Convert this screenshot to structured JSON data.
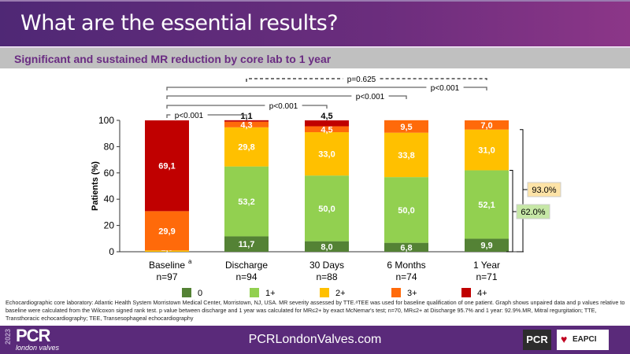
{
  "header": {
    "title": "What are the essential results?"
  },
  "subtitle": "Significant and sustained MR reduction by core lab to 1 year",
  "chart_data": {
    "type": "bar",
    "stacked": true,
    "ylabel": "Patients (%)",
    "ylim": [
      0,
      100
    ],
    "yticks": [
      "0",
      "20",
      "40",
      "60",
      "80",
      "100"
    ],
    "categories": [
      "Baseline",
      "Discharge",
      "30 Days",
      "6 Months",
      "1 Year"
    ],
    "category_superscripts": [
      "a",
      "",
      "",
      "",
      ""
    ],
    "category_n": [
      "n=97",
      "n=94",
      "n=88",
      "n=74",
      "n=71"
    ],
    "series": [
      {
        "name": "0",
        "color": "#548235",
        "values": [
          0,
          11.7,
          8.0,
          6.8,
          9.9
        ],
        "labels": [
          "",
          "11,7",
          "8,0",
          "6,8",
          "9,9"
        ]
      },
      {
        "name": "1+",
        "color": "#92d050",
        "values": [
          0,
          53.2,
          50.0,
          50.0,
          52.1
        ],
        "labels": [
          "",
          "53,2",
          "50,0",
          "50,0",
          "52,1"
        ]
      },
      {
        "name": "2+",
        "color": "#ffc000",
        "values": [
          1.0,
          29.8,
          33.0,
          33.8,
          31.0
        ],
        "labels": [
          "1,0",
          "29,8",
          "33,0",
          "33,8",
          "31,0"
        ]
      },
      {
        "name": "3+",
        "color": "#ff6a0a",
        "values": [
          29.9,
          4.3,
          4.5,
          9.5,
          7.0
        ],
        "labels": [
          "29,9",
          "4,3",
          "4,5",
          "9,5",
          "7,0"
        ]
      },
      {
        "name": "4+",
        "color": "#c00000",
        "values": [
          69.1,
          1.1,
          4.5,
          0,
          0
        ],
        "labels": [
          "69,1",
          "1,1",
          "4,5",
          "",
          ""
        ]
      }
    ],
    "comparisons": [
      {
        "from": "Discharge",
        "to": "1 Year",
        "label": "p=0.625",
        "dashed": true
      },
      {
        "from": "Baseline",
        "to": "1 Year",
        "label": "p<0.001"
      },
      {
        "from": "Baseline",
        "to": "6 Months",
        "label": "p<0.001"
      },
      {
        "from": "Baseline",
        "to": "30 Days",
        "label": "p<0.001"
      },
      {
        "from": "Baseline",
        "to": "Discharge",
        "label": "p<0.001"
      }
    ],
    "annotations": [
      {
        "label": "93.0%",
        "range": "0-2+",
        "category": "1 Year",
        "color": "#fde3a7"
      },
      {
        "label": "62.0%",
        "range": "0-1+",
        "category": "1 Year",
        "color": "#c6e7a6"
      }
    ],
    "legend": "bottom"
  },
  "footnote": "Echocardiographic core laboratory: Atlantic Health System Morristown Medical Center, Morristown, NJ, USA. MR severity assessed by TTE.ᵃTEE was used for baseline qualification of one patient. Graph shows unpaired data and p values relative to baseline were calculated from the Wilcoxon signed rank test. p value between discharge and 1 year was calculated for MR≤2+ by exact McNemar's test; n=70, MR≤2+ at Discharge 95.7% and 1 year: 92.9%.MR, Mitral regurgitation; TTE, Transthoracic echocardiography; TEE, Transesophageal echocardiography",
  "footer": {
    "year": "2023",
    "logo": "PCR",
    "logo_sub": "london valves",
    "url": "PCRLondonValves.com",
    "partner_logo": "PCR",
    "partner2": "EAPCI"
  }
}
